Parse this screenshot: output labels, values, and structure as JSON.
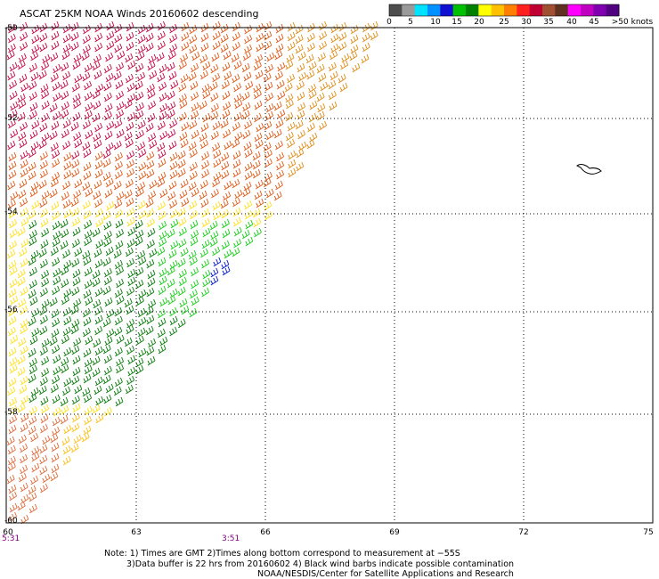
{
  "title": "ASCAT 25KM NOAA Winds 20160602 descending",
  "legend": {
    "colors": [
      "#4d4d4d",
      "#9a9a9a",
      "#00e0ff",
      "#0090ff",
      "#1010d0",
      "#00c000",
      "#008000",
      "#ffff00",
      "#ffc000",
      "#ff8000",
      "#ff2020",
      "#c00030",
      "#a05030",
      "#603020",
      "#ff00ff",
      "#c000c0",
      "#8000b0",
      "#500080"
    ],
    "ticks": [
      "0",
      "5",
      "10",
      "15",
      "20",
      "25",
      "30",
      "35",
      "40",
      "45",
      ">50 knots"
    ]
  },
  "axes": {
    "lat_labels": [
      "-50",
      "-52",
      "-54",
      "-56",
      "-58",
      "-60"
    ],
    "lon_labels": [
      "60",
      "63",
      "66",
      "69",
      "72",
      "75"
    ]
  },
  "times": [
    "5:31",
    "3:51"
  ],
  "notes": {
    "line1": "Note: 1) Times are GMT 2)Times along bottom correspond to measurement at −55S",
    "line2": "3)Data buffer is 22 hrs from 20160602 4) Black wind barbs indicate possible contamination",
    "line3": "NOAA/NESDIS/Center for Satellite Applications and Research"
  }
}
